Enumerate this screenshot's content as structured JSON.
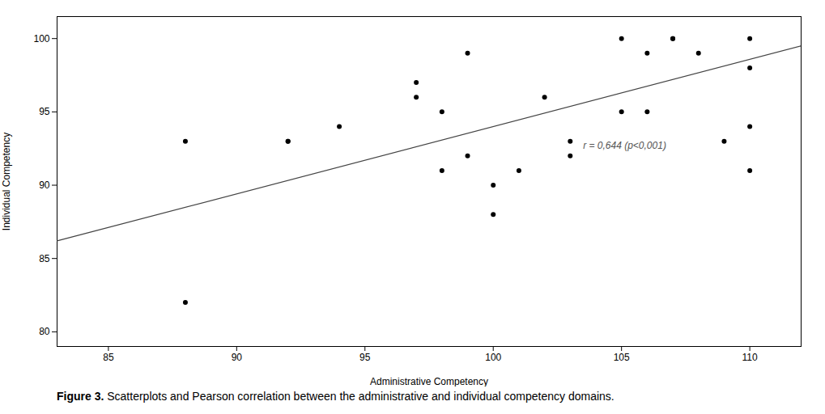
{
  "chart_data": {
    "type": "scatter",
    "x": [
      88,
      88,
      92,
      92,
      94,
      97,
      97,
      98,
      98,
      99,
      99,
      100,
      100,
      101,
      102,
      103,
      103,
      105,
      105,
      106,
      106,
      107,
      107,
      108,
      109,
      110,
      110,
      110,
      110
    ],
    "values": [
      82,
      93,
      93,
      93,
      94,
      96,
      97,
      91,
      95,
      92,
      99,
      90,
      88,
      91,
      96,
      93,
      92,
      95,
      100,
      95,
      99,
      100,
      100,
      99,
      93,
      98,
      91,
      100,
      94
    ],
    "color": "#000000",
    "line": {
      "x": [
        83,
        112
      ],
      "values": [
        86.2,
        99.5
      ],
      "color": "#444444"
    },
    "xlabel": "Administrative Competency",
    "ylabel": "Individual Competency",
    "xlim": [
      83,
      112
    ],
    "ylim": [
      79,
      101.5
    ],
    "xticks": [
      85,
      90,
      95,
      100,
      105,
      110
    ],
    "yticks": [
      80,
      85,
      90,
      95,
      100
    ],
    "annotations": [
      {
        "text": "r = 0,644 (p<0,001)",
        "x": 103.5,
        "y": 92.5
      }
    ],
    "caption_bold": "Figure 3.",
    "caption": " Scatterplots and Pearson correlation between the administrative and individual competency domains.",
    "grid": false
  }
}
